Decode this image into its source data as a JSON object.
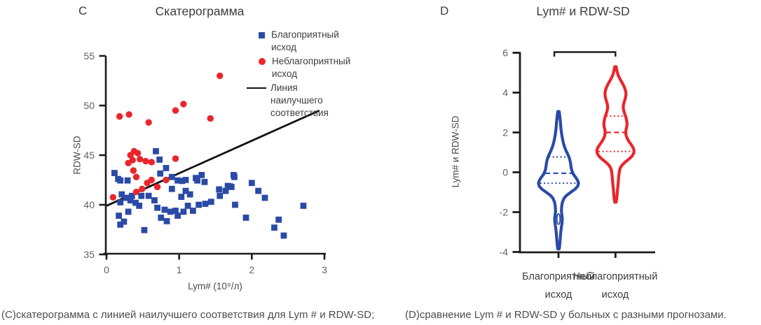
{
  "panels": {
    "c_label": "C",
    "d_label": "D"
  },
  "caption": {
    "c": "(C)скатерограмма с линией наилучшего соответствия для Lym # и RDW-SD;",
    "d": "(D)сравнение Lym # и RDW-SD у больных с разными прогнозами."
  },
  "colors": {
    "favorable_blue": "#2A4AA6",
    "unfavorable_red": "#E9262C",
    "axis_black": "#1c1c1c",
    "tick_gray": "#616161",
    "text_gray": "#3d3d3d"
  },
  "chart_data": [
    {
      "type": "scatter",
      "title": "Скатерограмма",
      "xlabel": "Lym# (10⁹/л)",
      "ylabel": "RDW-SD",
      "xlim": [
        0,
        3
      ],
      "ylim": [
        35,
        55
      ],
      "x_ticks": [
        0,
        1,
        2,
        3
      ],
      "y_ticks": [
        55,
        50,
        45,
        40,
        35
      ],
      "grid": false,
      "legend_position": "upper right",
      "series": [
        {
          "name": "Благоприятный исход",
          "marker": "square",
          "color": "#2A4AA6",
          "points": [
            [
              0.11,
              43.2
            ],
            [
              0.16,
              42.6
            ],
            [
              0.19,
              42.45
            ],
            [
              0.29,
              42.45
            ],
            [
              0.21,
              41.05
            ],
            [
              0.27,
              40.7
            ],
            [
              0.19,
              40.25
            ],
            [
              0.33,
              40.45
            ],
            [
              0.4,
              40.2
            ],
            [
              0.45,
              39.9
            ],
            [
              0.48,
              40.9
            ],
            [
              0.35,
              40.9
            ],
            [
              0.3,
              39.3
            ],
            [
              0.17,
              38.9
            ],
            [
              0.24,
              38.3
            ],
            [
              0.19,
              38.0
            ],
            [
              0.58,
              40.9
            ],
            [
              0.66,
              40.45
            ],
            [
              0.52,
              37.45
            ],
            [
              0.7,
              39.7
            ],
            [
              0.75,
              38.7
            ],
            [
              0.83,
              38.35
            ],
            [
              0.88,
              39.3
            ],
            [
              0.98,
              38.9
            ],
            [
              0.68,
              45.4
            ],
            [
              0.73,
              44.55
            ],
            [
              0.82,
              43.7
            ],
            [
              0.74,
              43.15
            ],
            [
              0.9,
              42.8
            ],
            [
              0.98,
              42.45
            ],
            [
              1.04,
              42.4
            ],
            [
              1.25,
              42.45
            ],
            [
              1.31,
              43.0
            ],
            [
              1.75,
              43.0
            ],
            [
              0.9,
              41.6
            ],
            [
              1.09,
              41.4
            ],
            [
              1.15,
              41.05
            ],
            [
              1.03,
              40.8
            ],
            [
              1.64,
              41.4
            ],
            [
              1.7,
              41.85
            ],
            [
              1.56,
              40.9
            ],
            [
              1.44,
              40.3
            ],
            [
              1.36,
              40.1
            ],
            [
              1.27,
              40.0
            ],
            [
              1.12,
              39.9
            ],
            [
              1.19,
              39.4
            ],
            [
              1.06,
              39.3
            ],
            [
              0.95,
              39.4
            ],
            [
              0.8,
              39.5
            ],
            [
              1.23,
              42.7
            ],
            [
              1.35,
              42.3
            ],
            [
              1.09,
              42.5
            ],
            [
              1.76,
              42.8
            ],
            [
              1.55,
              41.55
            ],
            [
              1.67,
              41.9
            ],
            [
              1.72,
              41.8
            ],
            [
              2.0,
              42.2
            ],
            [
              2.09,
              41.4
            ],
            [
              2.18,
              40.7
            ],
            [
              1.77,
              40.0
            ],
            [
              1.92,
              38.7
            ],
            [
              2.71,
              39.9
            ],
            [
              2.37,
              38.5
            ],
            [
              2.31,
              37.7
            ],
            [
              2.44,
              36.9
            ]
          ]
        },
        {
          "name": "Неблагоприятный исход",
          "marker": "circle",
          "color": "#E9262C",
          "points": [
            [
              0.18,
              48.9
            ],
            [
              0.31,
              49.1
            ],
            [
              0.58,
              48.3
            ],
            [
              0.95,
              49.5
            ],
            [
              1.06,
              50.15
            ],
            [
              1.43,
              48.7
            ],
            [
              1.56,
              53.0
            ],
            [
              0.33,
              45.0
            ],
            [
              0.38,
              45.4
            ],
            [
              0.43,
              45.2
            ],
            [
              0.3,
              44.2
            ],
            [
              0.36,
              44.5
            ],
            [
              0.46,
              44.6
            ],
            [
              0.54,
              44.4
            ],
            [
              0.62,
              44.3
            ],
            [
              0.95,
              44.65
            ],
            [
              0.37,
              43.45
            ],
            [
              0.09,
              40.75
            ],
            [
              0.41,
              41.3
            ],
            [
              0.49,
              41.6
            ],
            [
              0.56,
              42.2
            ],
            [
              0.62,
              42.5
            ],
            [
              0.41,
              42.8
            ],
            [
              0.82,
              42.5
            ],
            [
              0.7,
              41.8
            ]
          ]
        },
        {
          "name": "Линия наилучшего соответствия",
          "marker": "line",
          "color": "#111111",
          "from": [
            0,
            39.9
          ],
          "to": [
            2.93,
            49.5
          ]
        }
      ]
    },
    {
      "type": "violin",
      "title": "Lym# и RDW-SD",
      "ylabel": "Lym# и RDW-SD",
      "ylim": [
        -4,
        6
      ],
      "y_ticks": [
        6,
        4,
        2,
        0,
        -2,
        -4
      ],
      "grid": false,
      "comparison_bracket": true,
      "categories": [
        "Благоприятный исход",
        "Неблагоприятный исход"
      ],
      "groups": [
        {
          "name": "Благоприятный исход",
          "color": "#2A4AA6",
          "median": -0.05,
          "q1": -0.55,
          "q3": 0.77,
          "min": -3.85,
          "max": 3.05,
          "profile": [
            [
              3.05,
              1
            ],
            [
              2.9,
              1.6
            ],
            [
              2.7,
              2.2
            ],
            [
              2.5,
              2.8
            ],
            [
              2.3,
              3.2
            ],
            [
              2.1,
              3.8
            ],
            [
              1.9,
              4.6
            ],
            [
              1.7,
              5.6
            ],
            [
              1.5,
              6.8
            ],
            [
              1.3,
              8.4
            ],
            [
              1.1,
              10.6
            ],
            [
              0.95,
              12.6
            ],
            [
              0.8,
              14.6
            ],
            [
              0.65,
              16
            ],
            [
              0.5,
              17
            ],
            [
              0.35,
              17.6
            ],
            [
              0.2,
              18.2
            ],
            [
              0.05,
              19.4
            ],
            [
              -0.1,
              21.2
            ],
            [
              -0.25,
              24.4
            ],
            [
              -0.4,
              27.2
            ],
            [
              -0.55,
              28.6
            ],
            [
              -0.7,
              27.4
            ],
            [
              -0.85,
              23.6
            ],
            [
              -1.0,
              17.6
            ],
            [
              -1.15,
              11.8
            ],
            [
              -1.3,
              8
            ],
            [
              -1.5,
              5.6
            ],
            [
              -1.7,
              4.6
            ],
            [
              -1.9,
              4.2
            ],
            [
              -2.1,
              4.6
            ],
            [
              -2.3,
              5.4
            ],
            [
              -2.5,
              5.2
            ],
            [
              -2.7,
              4.4
            ],
            [
              -2.9,
              3.6
            ],
            [
              -3.1,
              3
            ],
            [
              -3.3,
              2.6
            ],
            [
              -3.5,
              2.1
            ],
            [
              -3.7,
              1.6
            ],
            [
              -3.85,
              1
            ]
          ]
        },
        {
          "name": "Неблагоприятный исход",
          "color": "#E9262C",
          "median": 2.0,
          "q1": 1.05,
          "q3": 2.82,
          "min": -1.5,
          "max": 5.3,
          "profile": [
            [
              5.3,
              1
            ],
            [
              5.15,
              1.8
            ],
            [
              5.0,
              2.8
            ],
            [
              4.85,
              4.2
            ],
            [
              4.7,
              6.2
            ],
            [
              4.55,
              8.6
            ],
            [
              4.4,
              11
            ],
            [
              4.25,
              13
            ],
            [
              4.1,
              14.4
            ],
            [
              3.95,
              15
            ],
            [
              3.8,
              14.6
            ],
            [
              3.65,
              13.6
            ],
            [
              3.5,
              12.2
            ],
            [
              3.35,
              11.2
            ],
            [
              3.2,
              11.2
            ],
            [
              3.05,
              12.2
            ],
            [
              2.9,
              13.6
            ],
            [
              2.75,
              15
            ],
            [
              2.6,
              16
            ],
            [
              2.45,
              16.6
            ],
            [
              2.3,
              16.2
            ],
            [
              2.15,
              15.2
            ],
            [
              2.0,
              14.6
            ],
            [
              1.85,
              15.2
            ],
            [
              1.7,
              16.8
            ],
            [
              1.55,
              19.2
            ],
            [
              1.4,
              22.2
            ],
            [
              1.25,
              25
            ],
            [
              1.1,
              26.6
            ],
            [
              0.95,
              26
            ],
            [
              0.8,
              23.4
            ],
            [
              0.65,
              18.8
            ],
            [
              0.5,
              13.4
            ],
            [
              0.35,
              9.2
            ],
            [
              0.2,
              6.6
            ],
            [
              0.05,
              5.6
            ],
            [
              -0.1,
              5
            ],
            [
              -0.3,
              4.4
            ],
            [
              -0.5,
              4
            ],
            [
              -0.7,
              3.4
            ],
            [
              -0.9,
              2.9
            ],
            [
              -1.1,
              2.4
            ],
            [
              -1.3,
              1.9
            ],
            [
              -1.5,
              1
            ]
          ]
        }
      ]
    }
  ]
}
